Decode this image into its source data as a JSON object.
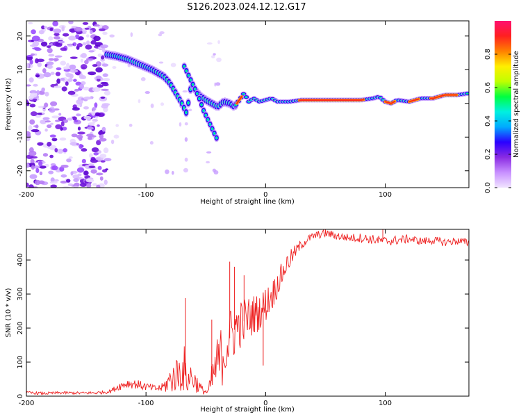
{
  "title": "S126.2023.024.12.12.G17",
  "chart_data": [
    {
      "type": "heatmap",
      "xlabel": "Height of straight line (km)",
      "ylabel": "Frequency (Hz)",
      "xlim": [
        -200,
        170
      ],
      "ylim": [
        -25,
        24.5
      ],
      "x_ticks": [
        -200,
        -100,
        0,
        100
      ],
      "y_ticks": [
        -20,
        -10,
        0,
        10,
        20
      ],
      "colorbar": {
        "label": "Normalized spectral amplitude",
        "range": [
          0,
          1
        ],
        "ticks": [
          0.0,
          0.2,
          0.4,
          0.6,
          0.8
        ],
        "tick_labels": [
          "0.0",
          "0.2",
          "0.4",
          "0.6",
          "0.8"
        ],
        "colors": [
          "#f0e4ff",
          "#c890ff",
          "#8a2be2",
          "#2a00ff",
          "#00aaff",
          "#00f0e0",
          "#00ff40",
          "#c0ff00",
          "#ffee00",
          "#ff8000",
          "#ff2020",
          "#ff1070"
        ]
      },
      "ridge": {
        "x": [
          -133,
          -125,
          -115,
          -105,
          -95,
          -85,
          -80,
          -75,
          -70,
          -66,
          -62,
          -58,
          -54,
          -50,
          -45,
          -40,
          -35,
          -30,
          -26,
          -22,
          -18,
          -14,
          -10,
          -5,
          0,
          5,
          10,
          20,
          30,
          50,
          70,
          80,
          90,
          95,
          100,
          105,
          110,
          120,
          130,
          140,
          150,
          160,
          170
        ],
        "y": [
          14.5,
          14,
          13,
          11.5,
          10,
          8,
          6,
          3,
          0,
          -3,
          6,
          3.5,
          2,
          1,
          0,
          -1,
          0.5,
          0,
          -1,
          1,
          3,
          0.5,
          1.5,
          0.5,
          1,
          1.5,
          0.5,
          0.5,
          1,
          1,
          1,
          1,
          1.5,
          2,
          0.5,
          0,
          1,
          0.5,
          1.5,
          1.5,
          2.5,
          2.5,
          3
        ]
      },
      "branch": {
        "x": [
          -68,
          -64,
          -60,
          -56,
          -52,
          -48,
          -44,
          -40
        ],
        "y": [
          11,
          8,
          5,
          2,
          -2,
          -5,
          -8,
          -11
        ]
      }
    },
    {
      "type": "line",
      "xlabel": "Height of straight line (km)",
      "ylabel": "SNR (10 * v/v)",
      "xlim": [
        -200,
        170
      ],
      "ylim": [
        0,
        490
      ],
      "x_ticks": [
        -200,
        -100,
        0,
        100
      ],
      "y_ticks": [
        0,
        100,
        200,
        300,
        400
      ],
      "color": "#ee2020",
      "series": [
        {
          "x": [
            -200,
            -185,
            -170,
            -155,
            -140,
            -130,
            -122,
            -115,
            -108,
            -100,
            -92,
            -86,
            -80,
            -76,
            -72,
            -68,
            -66,
            -63,
            -58,
            -55,
            -52,
            -48,
            -45,
            -42,
            -38,
            -34,
            -30,
            -26,
            -22,
            -18,
            -14,
            -10,
            -6,
            -2,
            2,
            6,
            10,
            14,
            18,
            22,
            26,
            30,
            35,
            40,
            45,
            50,
            55,
            60,
            70,
            80,
            90,
            100,
            110,
            120,
            130,
            140,
            150,
            160,
            170
          ],
          "y": [
            10,
            8,
            10,
            9,
            10,
            14,
            30,
            38,
            35,
            28,
            22,
            25,
            45,
            60,
            70,
            80,
            40,
            60,
            40,
            25,
            15,
            12,
            45,
            80,
            110,
            140,
            170,
            195,
            210,
            220,
            230,
            240,
            245,
            260,
            280,
            300,
            330,
            360,
            390,
            410,
            430,
            445,
            460,
            470,
            475,
            478,
            475,
            470,
            465,
            465,
            460,
            455,
            458,
            462,
            455,
            458,
            452,
            456,
            450
          ],
          "noise": [
            4,
            4,
            4,
            4,
            5,
            6,
            12,
            14,
            14,
            12,
            10,
            14,
            40,
            50,
            60,
            70,
            35,
            45,
            30,
            20,
            10,
            10,
            50,
            80,
            90,
            100,
            90,
            85,
            75,
            70,
            65,
            60,
            55,
            55,
            50,
            45,
            40,
            35,
            30,
            25,
            18,
            15,
            12,
            12,
            12,
            12,
            12,
            12,
            12,
            14,
            14,
            14,
            14,
            12,
            12,
            12,
            12,
            12,
            12
          ],
          "spikes": [
            {
              "x": -67,
              "y": 288
            },
            {
              "x": -45,
              "y": 225
            },
            {
              "x": -30,
              "y": 395
            },
            {
              "x": -26,
              "y": 380
            },
            {
              "x": -18,
              "y": 355
            },
            {
              "x": -2,
              "y": 90
            },
            {
              "x": 50,
              "y": 495
            },
            {
              "x": 98,
              "y": 495
            }
          ]
        }
      ]
    }
  ]
}
